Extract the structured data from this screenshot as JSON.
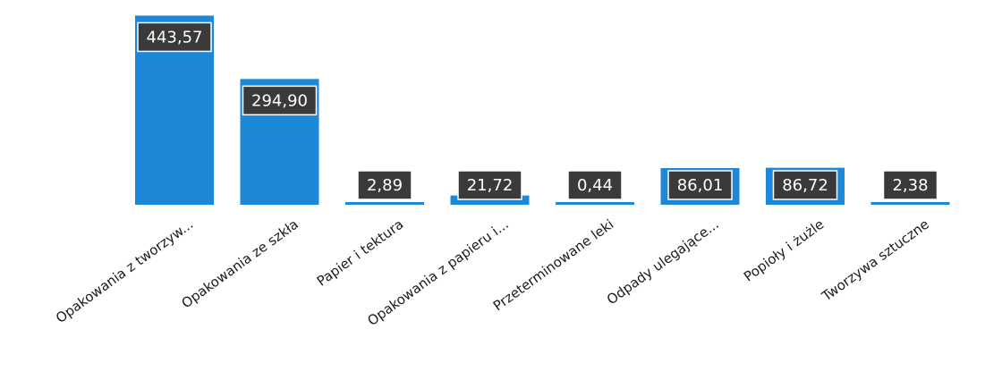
{
  "chart_data": {
    "type": "bar",
    "categories": [
      "Opakowania z tworzyw...",
      "Opakowania ze szkła",
      "Papier i tektura",
      "Opakowania z papieru i...",
      "Przeterminowane leki",
      "Odpady ulegające...",
      "Popioły i żużle",
      "Tworzywa sztuczne"
    ],
    "values": [
      443.57,
      294.9,
      2.89,
      21.72,
      0.44,
      86.01,
      86.72,
      2.38
    ],
    "value_labels": [
      "443,57",
      "294,90",
      "2,89",
      "21,72",
      "0,44",
      "86,01",
      "86,72",
      "2,38"
    ],
    "title": "",
    "xlabel": "",
    "ylabel": "",
    "ylim": [
      0,
      455
    ],
    "grid": false,
    "legend": "none",
    "colors": {
      "bar": "#1e88d8",
      "label_box": "#3a3a3a",
      "label_text": "#ffffff"
    }
  }
}
